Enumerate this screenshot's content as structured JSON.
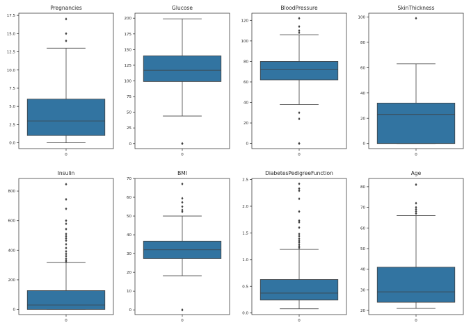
{
  "chart_data": [
    {
      "type": "box",
      "title": "Pregnancies",
      "xtick": "0",
      "ylim": [
        -0.8,
        17.8
      ],
      "yticks": [
        0.0,
        2.5,
        5.0,
        7.5,
        10.0,
        12.5,
        15.0,
        17.5
      ],
      "ytick_labels": [
        "0.0",
        "2.5",
        "5.0",
        "7.5",
        "10.0",
        "12.5",
        "15.0",
        "17.5"
      ],
      "whisker_low": 0,
      "q1": 1,
      "median": 3,
      "q3": 6,
      "whisker_high": 13,
      "outliers": [
        14,
        15,
        17
      ]
    },
    {
      "type": "box",
      "title": "Glucose",
      "xtick": "0",
      "ylim": [
        -8,
        208
      ],
      "yticks": [
        0,
        25,
        50,
        75,
        100,
        125,
        150,
        175,
        200
      ],
      "ytick_labels": [
        "0",
        "25",
        "50",
        "75",
        "100",
        "125",
        "150",
        "175",
        "200"
      ],
      "whisker_low": 44,
      "q1": 99,
      "median": 117,
      "q3": 140,
      "whisker_high": 199,
      "outliers": [
        0,
        0
      ]
    },
    {
      "type": "box",
      "title": "BloodPressure",
      "xtick": "0",
      "ylim": [
        -5,
        127
      ],
      "yticks": [
        0,
        20,
        40,
        60,
        80,
        100,
        120
      ],
      "ytick_labels": [
        "0",
        "20",
        "40",
        "60",
        "80",
        "100",
        "120"
      ],
      "whisker_low": 38,
      "q1": 62,
      "median": 72,
      "q3": 80,
      "whisker_high": 106,
      "outliers": [
        0,
        0,
        24,
        30,
        108,
        110,
        114,
        122
      ]
    },
    {
      "type": "box",
      "title": "SkinThickness",
      "xtick": "0",
      "ylim": [
        -4,
        103
      ],
      "yticks": [
        0,
        20,
        40,
        60,
        80,
        100
      ],
      "ytick_labels": [
        "0",
        "20",
        "40",
        "60",
        "80",
        "100"
      ],
      "whisker_low": 0,
      "q1": 0,
      "median": 23,
      "q3": 32,
      "whisker_high": 63,
      "outliers": [
        99
      ]
    },
    {
      "type": "box",
      "title": "Insulin",
      "xtick": "0",
      "ylim": [
        -35,
        885
      ],
      "yticks": [
        0,
        200,
        400,
        600,
        800
      ],
      "ytick_labels": [
        "0",
        "200",
        "400",
        "600",
        "800"
      ],
      "whisker_low": 0,
      "q1": 0,
      "median": 30,
      "q3": 127,
      "whisker_high": 318,
      "outliers": [
        321,
        330,
        342,
        360,
        375,
        392,
        415,
        440,
        465,
        480,
        495,
        510,
        543,
        579,
        600,
        680,
        744,
        846
      ]
    },
    {
      "type": "box",
      "title": "BMI",
      "xtick": "0",
      "ylim": [
        -2.5,
        70
      ],
      "yticks": [
        0,
        10,
        20,
        30,
        40,
        50,
        60,
        70
      ],
      "ytick_labels": [
        "0",
        "10",
        "20",
        "30",
        "40",
        "50",
        "60",
        "70"
      ],
      "whisker_low": 18.2,
      "q1": 27.3,
      "median": 32,
      "q3": 36.6,
      "whisker_high": 50,
      "outliers": [
        0,
        0,
        52.3,
        53.2,
        55,
        57.3,
        59.4,
        67.1
      ]
    },
    {
      "type": "box",
      "title": "DiabetesPedigreeFunction",
      "xtick": "0",
      "ylim": [
        -0.03,
        2.52
      ],
      "yticks": [
        0.0,
        0.5,
        1.0,
        1.5,
        2.0,
        2.5
      ],
      "ytick_labels": [
        "0.0",
        "0.5",
        "1.0",
        "1.5",
        "2.0",
        "2.5"
      ],
      "whisker_low": 0.078,
      "q1": 0.244,
      "median": 0.373,
      "q3": 0.627,
      "whisker_high": 1.191,
      "outliers": [
        1.22,
        1.25,
        1.28,
        1.32,
        1.35,
        1.39,
        1.44,
        1.48,
        1.6,
        1.7,
        1.73,
        1.9,
        2.14,
        2.29,
        2.33,
        2.42
      ]
    },
    {
      "type": "box",
      "title": "Age",
      "xtick": "0",
      "ylim": [
        18,
        84
      ],
      "yticks": [
        20,
        30,
        40,
        50,
        60,
        70,
        80
      ],
      "ytick_labels": [
        "20",
        "30",
        "40",
        "50",
        "60",
        "70",
        "80"
      ],
      "whisker_low": 21,
      "q1": 24,
      "median": 29,
      "q3": 41,
      "whisker_high": 66,
      "outliers": [
        67,
        68,
        69,
        70,
        72,
        81
      ]
    }
  ]
}
